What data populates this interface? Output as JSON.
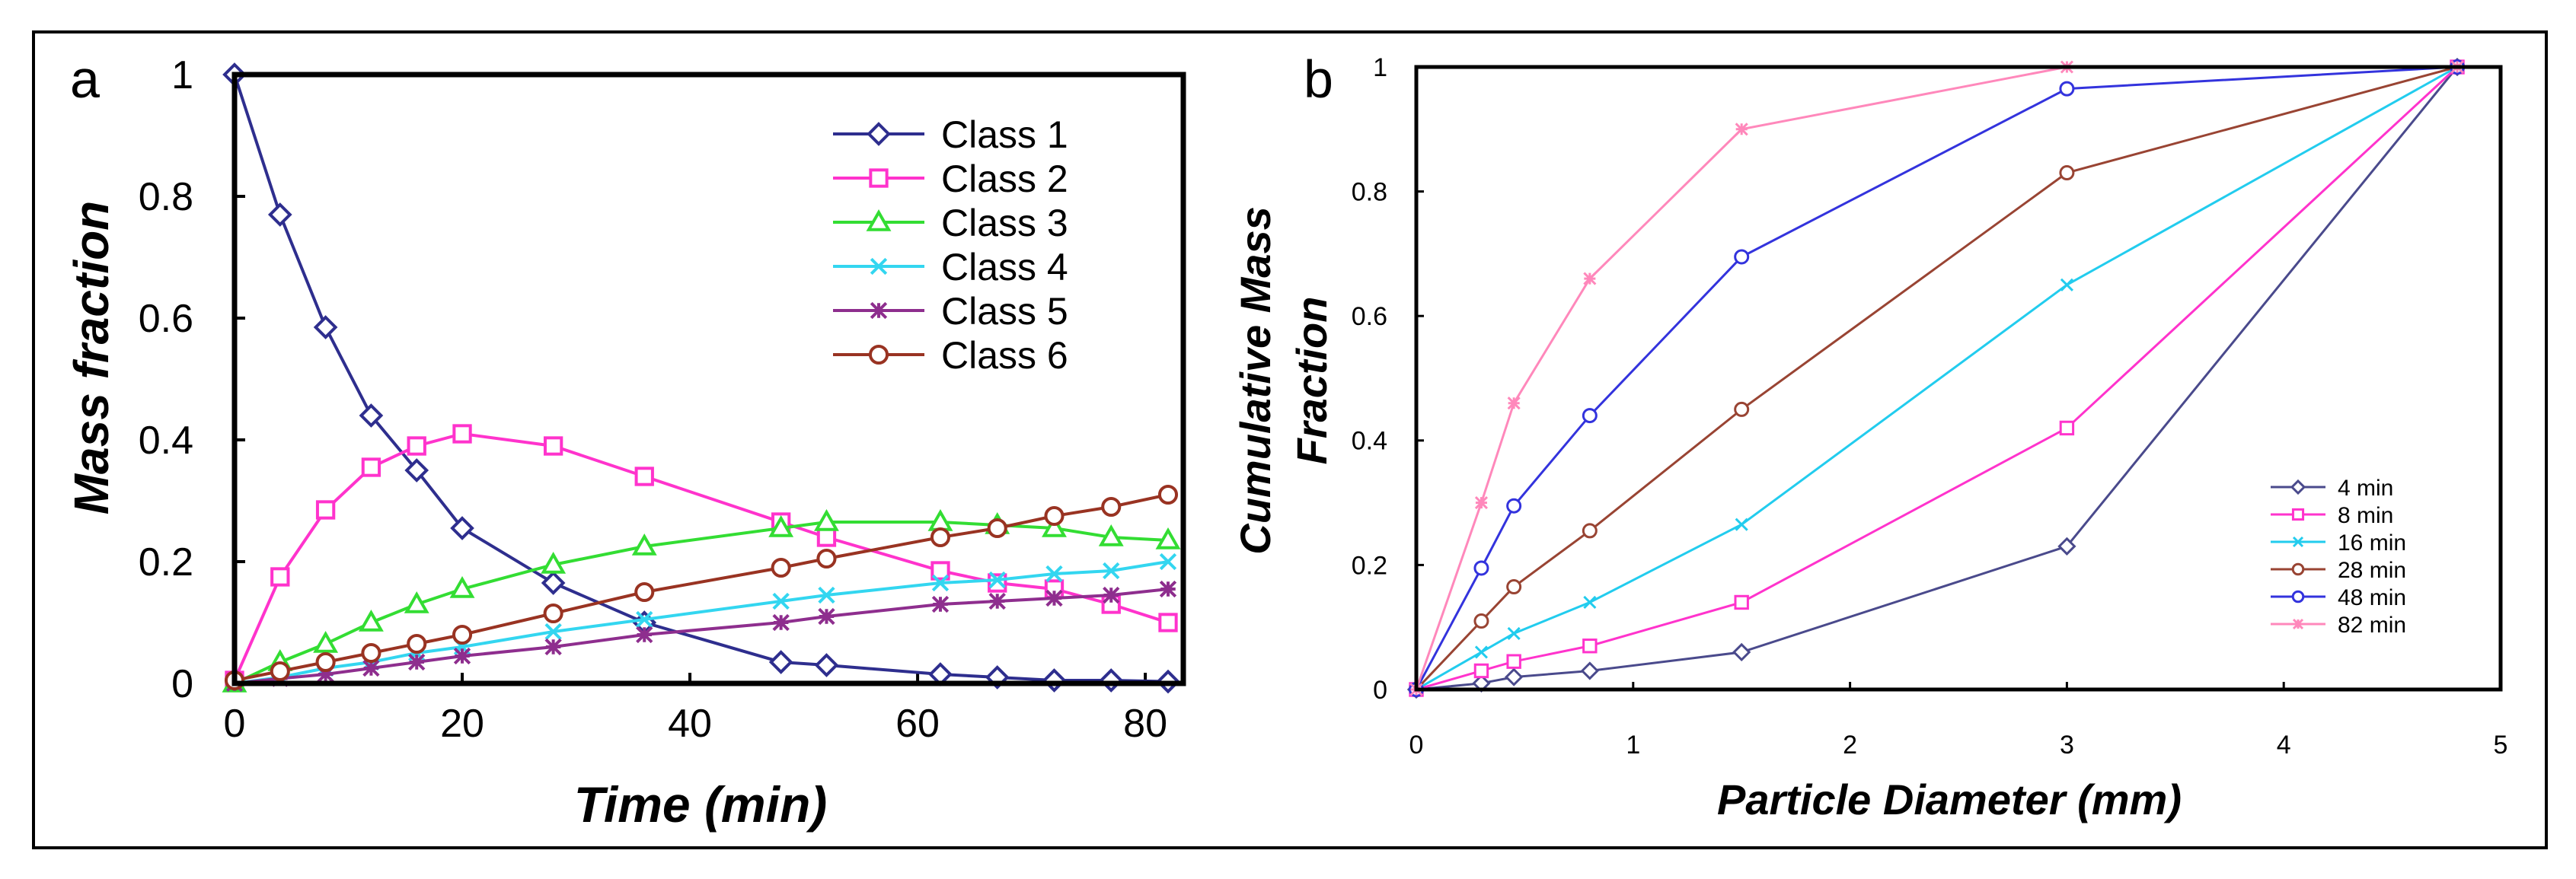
{
  "chart_data": [
    {
      "panel_label": "a",
      "type": "line",
      "xlabel": "Time (min)",
      "ylabel": "Mass fraction",
      "xlim": [
        0,
        82
      ],
      "ylim": [
        0,
        1
      ],
      "xticks": [
        0,
        20,
        40,
        60,
        80
      ],
      "yticks": [
        0,
        0.2,
        0.4,
        0.6,
        0.8,
        1
      ],
      "ytick_labels": [
        "0",
        "0.2",
        "0.4",
        "0.6",
        "0.8",
        "1"
      ],
      "grid": false,
      "legend_position": "top-right",
      "x": [
        0,
        4,
        8,
        12,
        16,
        20,
        28,
        36,
        48,
        52,
        62,
        67,
        72,
        77,
        82
      ],
      "series": [
        {
          "name": "Class 1",
          "color": "#2e2e8e",
          "marker": "diamond",
          "values": [
            1.0,
            0.77,
            0.585,
            0.44,
            0.35,
            0.255,
            0.165,
            0.1,
            0.035,
            0.03,
            0.015,
            0.01,
            0.005,
            0.005,
            0.003
          ]
        },
        {
          "name": "Class 2",
          "color": "#ff33cc",
          "marker": "square",
          "values": [
            0.005,
            0.175,
            0.285,
            0.355,
            0.39,
            0.41,
            0.39,
            0.34,
            0.265,
            0.24,
            0.185,
            0.165,
            0.155,
            0.13,
            0.1
          ]
        },
        {
          "name": "Class 3",
          "color": "#33dd33",
          "marker": "triangle",
          "values": [
            0.0,
            0.035,
            0.065,
            0.1,
            0.13,
            0.155,
            0.195,
            0.225,
            0.255,
            0.265,
            0.265,
            0.26,
            0.255,
            0.24,
            0.235
          ]
        },
        {
          "name": "Class 4",
          "color": "#33d6f0",
          "marker": "x",
          "values": [
            0.0,
            0.01,
            0.025,
            0.035,
            0.05,
            0.06,
            0.085,
            0.105,
            0.135,
            0.145,
            0.165,
            0.17,
            0.18,
            0.185,
            0.2
          ]
        },
        {
          "name": "Class 5",
          "color": "#8e2e8e",
          "marker": "asterisk",
          "values": [
            0.0,
            0.008,
            0.015,
            0.025,
            0.035,
            0.045,
            0.06,
            0.08,
            0.1,
            0.11,
            0.13,
            0.135,
            0.14,
            0.145,
            0.155
          ]
        },
        {
          "name": "Class 6",
          "color": "#993322",
          "marker": "circle",
          "values": [
            0.005,
            0.02,
            0.035,
            0.05,
            0.065,
            0.08,
            0.115,
            0.15,
            0.19,
            0.205,
            0.24,
            0.255,
            0.275,
            0.29,
            0.31
          ]
        }
      ]
    },
    {
      "panel_label": "b",
      "type": "line",
      "xlabel": "Particle Diameter (mm)",
      "ylabel_line1": "Cumulative Mass",
      "ylabel_line2": "Fraction",
      "xlim": [
        0,
        5
      ],
      "ylim": [
        0,
        1
      ],
      "xticks": [
        0,
        1,
        2,
        3,
        4,
        5
      ],
      "yticks": [
        0,
        0.2,
        0.4,
        0.6,
        0.8,
        1
      ],
      "ytick_labels": [
        "0",
        "0.2",
        "0.4",
        "0.6",
        "0.8",
        "1"
      ],
      "grid": false,
      "legend_position": "bottom-right",
      "x": [
        0,
        0.3,
        0.45,
        0.8,
        1.5,
        3.0,
        4.8
      ],
      "series": [
        {
          "name": "4 min",
          "color": "#4a4a8c",
          "marker": "diamond",
          "values": [
            0.0,
            0.01,
            0.02,
            0.03,
            0.06,
            0.23,
            1.0
          ]
        },
        {
          "name": "8 min",
          "color": "#ff33cc",
          "marker": "square",
          "values": [
            0.0,
            0.03,
            0.045,
            0.07,
            0.14,
            0.42,
            1.0
          ]
        },
        {
          "name": "16 min",
          "color": "#22ccee",
          "marker": "x",
          "values": [
            0.0,
            0.06,
            0.09,
            0.14,
            0.265,
            0.65,
            1.0
          ]
        },
        {
          "name": "28 min",
          "color": "#994433",
          "marker": "circle",
          "values": [
            0.0,
            0.11,
            0.165,
            0.255,
            0.45,
            0.83,
            1.0
          ]
        },
        {
          "name": "48 min",
          "color": "#3333dd",
          "marker": "circle",
          "values": [
            0.0,
            0.195,
            0.295,
            0.44,
            0.695,
            0.965,
            1.0
          ]
        },
        {
          "name": "82 min",
          "color": "#ff88bb",
          "marker": "asterisk",
          "values": [
            0.0,
            0.3,
            0.46,
            0.66,
            0.9,
            1.0,
            1.0
          ]
        }
      ]
    }
  ]
}
